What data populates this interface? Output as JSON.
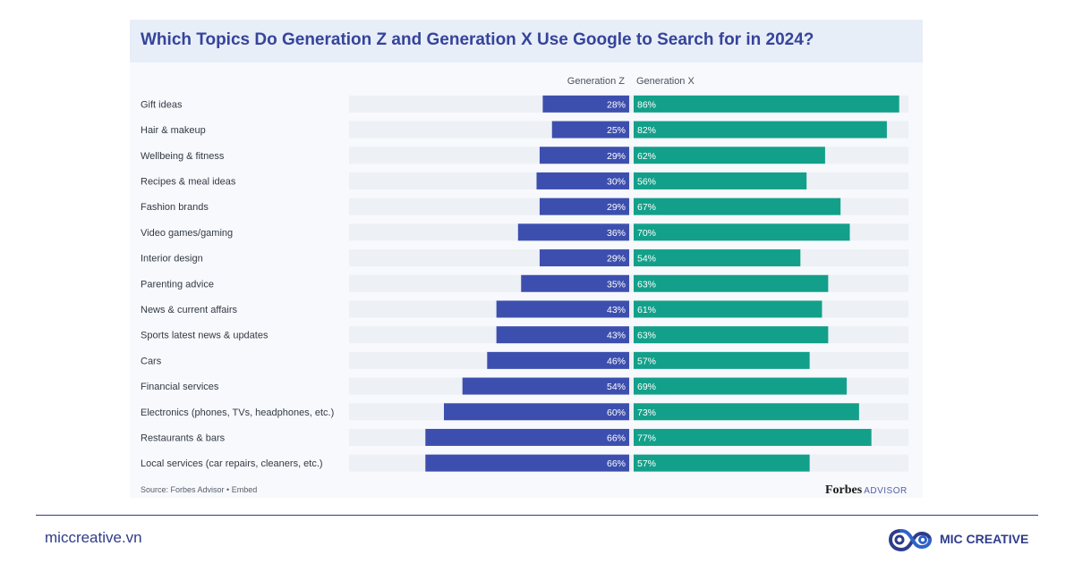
{
  "chart_data": {
    "type": "bar",
    "title": "Which Topics Do Generation Z and Generation X Use Google to Search for in 2024?",
    "categories": [
      "Gift ideas",
      "Hair & makeup",
      "Wellbeing & fitness",
      "Recipes & meal ideas",
      "Fashion brands",
      "Video games/gaming",
      "Interior design",
      "Parenting advice",
      "News & current affairs",
      "Sports latest news & updates",
      "Cars",
      "Financial services",
      "Electronics (phones, TVs, headphones, etc.)",
      "Restaurants & bars",
      "Local services (car repairs, cleaners, etc.)"
    ],
    "series": [
      {
        "name": "Generation Z",
        "values": [
          28,
          25,
          29,
          30,
          29,
          36,
          29,
          35,
          43,
          43,
          46,
          54,
          60,
          66,
          66
        ],
        "labels": [
          "28%",
          "25%",
          "29%",
          "30%",
          "29%",
          "36%",
          "29%",
          "35%",
          "43%",
          "43%",
          "46%",
          "54%",
          "60%",
          "66%",
          "66%"
        ],
        "color": "#3d4fae"
      },
      {
        "name": "Generation X",
        "values": [
          86,
          82,
          62,
          56,
          67,
          70,
          54,
          63,
          61,
          63,
          57,
          69,
          73,
          77,
          57
        ],
        "labels": [
          "86%",
          "82%",
          "62%",
          "56%",
          "67%",
          "70%",
          "54%",
          "63%",
          "61%",
          "63%",
          "57%",
          "69%",
          "73%",
          "77%",
          "57%"
        ],
        "color": "#13a08a"
      }
    ],
    "unit": "%",
    "xlim": [
      0,
      100
    ],
    "legend": "top",
    "grid": false,
    "track_color": "#edf0f5"
  },
  "source": "Source: Forbes Advisor • Embed",
  "forbes_logo": {
    "word": "Forbes",
    "suffix": "ADVISOR"
  },
  "footer": {
    "site": "miccreative.vn",
    "brand": "MIC CREATIVE",
    "brand_color": "#2f3c8a",
    "logo_icon": "infinity-loop-logo-icon"
  }
}
